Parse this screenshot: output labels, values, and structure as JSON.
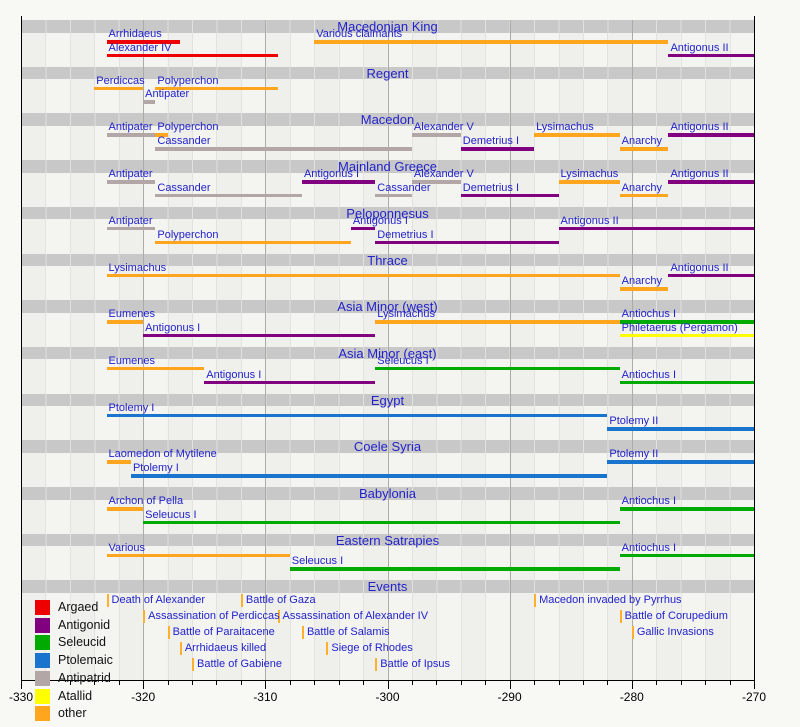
{
  "colors": {
    "argead": "#ee0000",
    "antigonid": "#800080",
    "seleucid": "#00aa00",
    "ptolemaic": "#1874cd",
    "antipatrid": "#b3a6a6",
    "attalid": "#ffff00",
    "other": "#ffa51e",
    "event_tick": "#ffb12e",
    "link_text": "#2222cc",
    "band_bg": "#c8c8c8",
    "plot_bg": "#f4f4f1",
    "axis": "#000000"
  },
  "legend": {
    "items": [
      {
        "label": "Argaed",
        "faction": "argead"
      },
      {
        "label": "Antigonid",
        "faction": "antigonid"
      },
      {
        "label": "Seleucid",
        "faction": "seleucid"
      },
      {
        "label": "Ptolemaic",
        "faction": "ptolemaic"
      },
      {
        "label": "Antipatrid",
        "faction": "antipatrid"
      },
      {
        "label": "Atallid",
        "faction": "attalid"
      },
      {
        "label": "other",
        "faction": "other"
      }
    ]
  },
  "chart_data": {
    "type": "timeline",
    "axis": {
      "min": -330,
      "max": -270,
      "major_step": 10,
      "minor_step": 2,
      "tick_labels": [
        "-330",
        "-320",
        "-310",
        "-300",
        "-290",
        "-280",
        "-270"
      ]
    },
    "sections": [
      {
        "title": "Macedonian King",
        "rows": [
          [
            {
              "label": "Arrhidaeus",
              "start": -323,
              "end": -317,
              "faction": "argead"
            },
            {
              "label": "Various claimants",
              "start": -306,
              "end": -277,
              "faction": "other"
            }
          ],
          [
            {
              "label": "Alexander IV",
              "start": -323,
              "end": -309,
              "faction": "argead"
            },
            {
              "label": "Antigonus II",
              "start": -277,
              "end": -270,
              "faction": "antigonid"
            }
          ]
        ]
      },
      {
        "title": "Regent",
        "rows": [
          [
            {
              "label": "Perdiccas",
              "start": -324,
              "end": -320,
              "faction": "other"
            },
            {
              "label": "Polyperchon",
              "start": -319,
              "end": -309,
              "faction": "other"
            }
          ],
          [
            {
              "label": "Antipater",
              "start": -320,
              "end": -319,
              "faction": "antipatrid"
            }
          ]
        ]
      },
      {
        "title": "Macedon",
        "rows": [
          [
            {
              "label": "Antipater",
              "start": -323,
              "end": -319,
              "faction": "antipatrid"
            },
            {
              "label": "Polyperchon",
              "start": -319,
              "end": -318,
              "faction": "other"
            },
            {
              "label": "Alexander V",
              "start": -298,
              "end": -294,
              "faction": "antipatrid"
            },
            {
              "label": "Lysimachus",
              "start": -288,
              "end": -281,
              "fafaction": "other",
              "faction": "other"
            },
            {
              "label": "Antigonus II",
              "start": -277,
              "end": -270,
              "faction": "antigonid"
            }
          ],
          [
            {
              "label": "Cassander",
              "start": -319,
              "end": -298,
              "faction": "antipatrid"
            },
            {
              "label": "Demetrius I",
              "start": -294,
              "end": -288,
              "faction": "antigonid"
            },
            {
              "label": "Anarchy",
              "start": -281,
              "end": -277,
              "faction": "other"
            }
          ]
        ]
      },
      {
        "title": "Mainland Greece",
        "rows": [
          [
            {
              "label": "Antipater",
              "start": -323,
              "end": -319,
              "faction": "antipatrid"
            },
            {
              "label": "Antigonus I",
              "start": -307,
              "end": -301,
              "faction": "antigonid"
            },
            {
              "label": "Alexander V",
              "start": -298,
              "end": -294,
              "faction": "antipatrid"
            },
            {
              "label": "Lysimachus",
              "start": -286,
              "end": -281,
              "faction": "other"
            },
            {
              "label": "Antigonus II",
              "start": -277,
              "end": -270,
              "faction": "antigonid"
            }
          ],
          [
            {
              "label": "Cassander",
              "start": -319,
              "end": -307,
              "faction": "antipatrid"
            },
            {
              "label": "Cassander",
              "start": -301,
              "end": -298,
              "faction": "antipatrid"
            },
            {
              "label": "Demetrius I",
              "start": -294,
              "end": -286,
              "faction": "antigonid"
            },
            {
              "label": "Anarchy",
              "start": -281,
              "end": -277,
              "faction": "other"
            }
          ]
        ]
      },
      {
        "title": "Peloponnesus",
        "rows": [
          [
            {
              "label": "Antipater",
              "start": -323,
              "end": -319,
              "faction": "antipatrid"
            },
            {
              "label": "Antigonus I",
              "start": -303,
              "end": -301,
              "faction": "antigonid"
            },
            {
              "label": "Antigonus II",
              "start": -286,
              "end": -270,
              "faction": "antigonid"
            }
          ],
          [
            {
              "label": "Polyperchon",
              "start": -319,
              "end": -303,
              "faction": "other"
            },
            {
              "label": "Demetrius I",
              "start": -301,
              "end": -286,
              "faction": "antigonid"
            }
          ]
        ]
      },
      {
        "title": "Thrace",
        "rows": [
          [
            {
              "label": "Lysimachus",
              "start": -323,
              "end": -281,
              "faction": "other"
            },
            {
              "label": "Antigonus II",
              "start": -277,
              "end": -270,
              "faction": "antigonid"
            }
          ],
          [
            {
              "label": "Anarchy",
              "start": -281,
              "end": -277,
              "faction": "other"
            }
          ]
        ]
      },
      {
        "title": "Asia Minor (west)",
        "rows": [
          [
            {
              "label": "Eumenes",
              "start": -323,
              "end": -320,
              "faction": "other"
            },
            {
              "label": "Lysimachus",
              "start": -301,
              "end": -281,
              "faction": "other"
            },
            {
              "label": "Antiochus I",
              "start": -281,
              "end": -270,
              "faction": "seleucid"
            }
          ],
          [
            {
              "label": "Antigonus I",
              "start": -320,
              "end": -301,
              "faction": "antigonid"
            },
            {
              "label": "Philetaerus (Pergamon)",
              "start": -281,
              "end": -270,
              "faction": "attalid"
            }
          ]
        ]
      },
      {
        "title": "Asia Minor (east)",
        "rows": [
          [
            {
              "label": "Eumenes",
              "start": -323,
              "end": -315,
              "faction": "other"
            },
            {
              "label": "Seleucus I",
              "start": -301,
              "end": -281,
              "faction": "seleucid"
            }
          ],
          [
            {
              "label": "Antigonus I",
              "start": -315,
              "end": -301,
              "faction": "antigonid"
            },
            {
              "label": "Antiochus I",
              "start": -281,
              "end": -270,
              "faction": "seleucid"
            }
          ]
        ]
      },
      {
        "title": "Egypt",
        "rows": [
          [
            {
              "label": "Ptolemy I",
              "start": -323,
              "end": -282,
              "faction": "ptolemaic"
            }
          ],
          [
            {
              "label": "Ptolemy II",
              "start": -282,
              "end": -270,
              "faction": "ptolemaic"
            }
          ]
        ]
      },
      {
        "title": "Coele Syria",
        "rows": [
          [
            {
              "label": "Laomedon of Mytilene",
              "start": -323,
              "end": -321,
              "faction": "other"
            },
            {
              "label": "Ptolemy II",
              "start": -282,
              "end": -270,
              "faction": "ptolemaic"
            }
          ],
          [
            {
              "label": "Ptolemy I",
              "start": -321,
              "end": -282,
              "faction": "ptolemaic"
            }
          ]
        ]
      },
      {
        "title": "Babylonia",
        "rows": [
          [
            {
              "label": "Archon of Pella",
              "start": -323,
              "end": -320,
              "faction": "other"
            },
            {
              "label": "Antiochus I",
              "start": -281,
              "end": -270,
              "faction": "seleucid"
            }
          ],
          [
            {
              "label": "Seleucus I",
              "start": -320,
              "end": -281,
              "faction": "seleucid"
            }
          ]
        ]
      },
      {
        "title": "Eastern Satrapies",
        "rows": [
          [
            {
              "label": "Various",
              "start": -323,
              "end": -308,
              "faction": "other"
            },
            {
              "label": "Antiochus I",
              "start": -281,
              "end": -270,
              "faction": "seleucid"
            }
          ],
          [
            {
              "label": "Seleucus I",
              "start": -308,
              "end": -281,
              "faction": "seleucid"
            }
          ]
        ]
      },
      {
        "title": "Events",
        "event_rows": [
          [
            {
              "label": "Death of Alexander",
              "year": -323
            },
            {
              "label": "Battle of Gaza",
              "year": -312
            },
            {
              "label": "Macedon invaded by Pyrrhus",
              "year": -288
            }
          ],
          [
            {
              "label": "Assassination of Perdiccas",
              "year": -320
            },
            {
              "label": "Assassination of Alexander IV",
              "year": -309
            },
            {
              "label": "Battle of Corupedium",
              "year": -281
            }
          ],
          [
            {
              "label": "Battle of Paraitacene",
              "year": -318
            },
            {
              "label": "Battle of Salamis",
              "year": -307
            },
            {
              "label": "Gallic Invasions",
              "year": -280
            }
          ],
          [
            {
              "label": "Arrhidaeus killed",
              "year": -317
            },
            {
              "label": "Siege of Rhodes",
              "year": -305
            }
          ],
          [
            {
              "label": "Battle of Gabiene",
              "year": -316
            },
            {
              "label": "Battle of Ipsus",
              "year": -301
            }
          ]
        ]
      }
    ]
  }
}
